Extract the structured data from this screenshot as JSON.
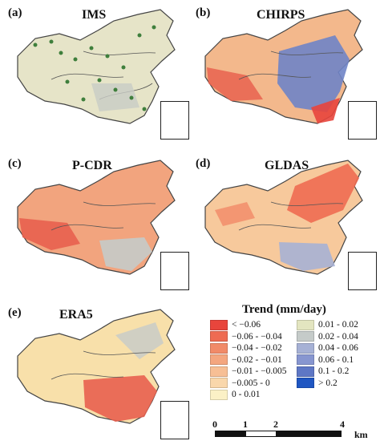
{
  "panels": [
    {
      "label": "(a)",
      "title": "IMS",
      "fill": "#e3e2c6",
      "accent": "#c9cdbf"
    },
    {
      "label": "(b)",
      "title": "CHIRPS",
      "fill": "#f2b68a",
      "accent": "#6f84c6"
    },
    {
      "label": "(c)",
      "title": "P-CDR",
      "fill": "#f0a07a",
      "accent": "#e26a55"
    },
    {
      "label": "(d)",
      "title": "GLDAS",
      "fill": "#f6c79a",
      "accent": "#e9776a"
    },
    {
      "label": "(e)",
      "title": "ERA5",
      "fill": "#f8e0aa",
      "accent": "#e8614f"
    }
  ],
  "legend": {
    "title": "Trend (mm/day)",
    "items": [
      {
        "label": "< −0.06",
        "color": "#e8453c"
      },
      {
        "label": "−0.06 - −0.04",
        "color": "#ee6b52"
      },
      {
        "label": "−0.04 - −0.02",
        "color": "#f18a68"
      },
      {
        "label": "−0.02 - −0.01",
        "color": "#f4a67f"
      },
      {
        "label": "−0.01 - −0.005",
        "color": "#f7bf95"
      },
      {
        "label": "−0.005 - 0",
        "color": "#f9d7ab"
      },
      {
        "label": "0 - 0.01",
        "color": "#fbf1c6"
      },
      {
        "label": "0.01 - 0.02",
        "color": "#e3e5c0"
      },
      {
        "label": "0.02 - 0.04",
        "color": "#c5cbc9"
      },
      {
        "label": "0.04 - 0.06",
        "color": "#a6b1d5"
      },
      {
        "label": "0.06 - 0.1",
        "color": "#8796d0"
      },
      {
        "label": "0.1 - 0.2",
        "color": "#5e77c5"
      },
      {
        "label": "> 0.2",
        "color": "#1f56c2"
      }
    ]
  },
  "scalebar": {
    "ticks": [
      "0",
      "1",
      "2",
      "4"
    ],
    "unit": "km"
  }
}
